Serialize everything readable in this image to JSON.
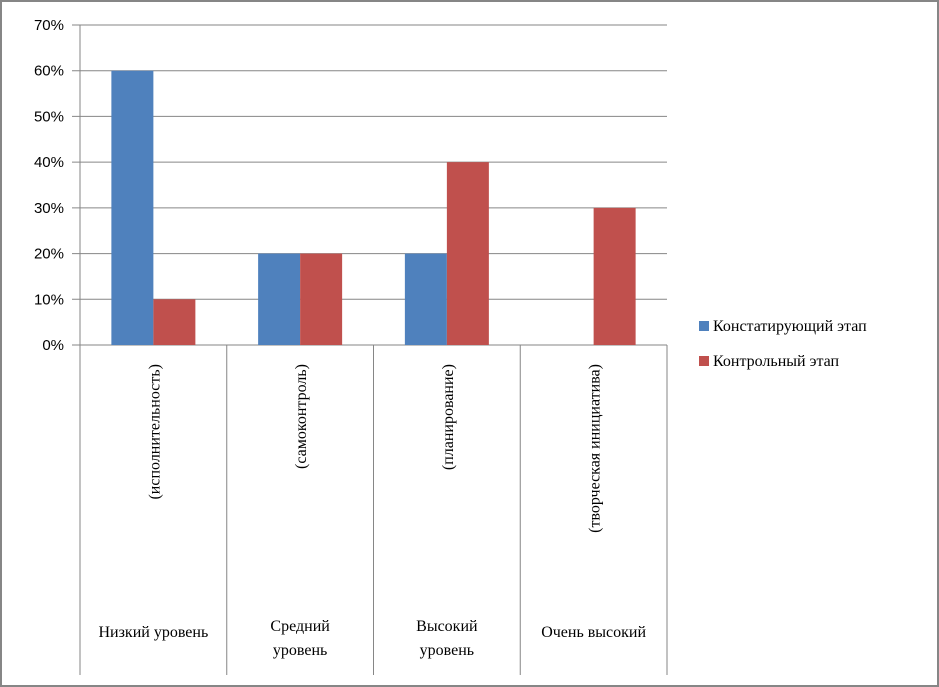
{
  "chart_data": {
    "type": "bar",
    "title": "",
    "xlabel": "",
    "ylabel": "",
    "ylim": [
      0,
      70
    ],
    "yticks": [
      "0%",
      "10%",
      "20%",
      "30%",
      "40%",
      "50%",
      "60%",
      "70%"
    ],
    "grid": true,
    "legend_position": "right",
    "categories": [
      {
        "main": [
          "Низкий уровень"
        ],
        "sub": "(исполнительность)"
      },
      {
        "main": [
          "Средний",
          "уровень"
        ],
        "sub": "(самоконтроль)"
      },
      {
        "main": [
          "Высокий",
          "уровень"
        ],
        "sub": "(планирование)"
      },
      {
        "main": [
          "Очень высокий"
        ],
        "sub": "(творческая инициатива)"
      }
    ],
    "series": [
      {
        "name": "Констатирующий этап",
        "color": "#4f81bd",
        "values": [
          60,
          20,
          20,
          0
        ]
      },
      {
        "name": "Контрольный этап",
        "color": "#c0504d",
        "values": [
          10,
          20,
          40,
          30
        ]
      }
    ]
  }
}
